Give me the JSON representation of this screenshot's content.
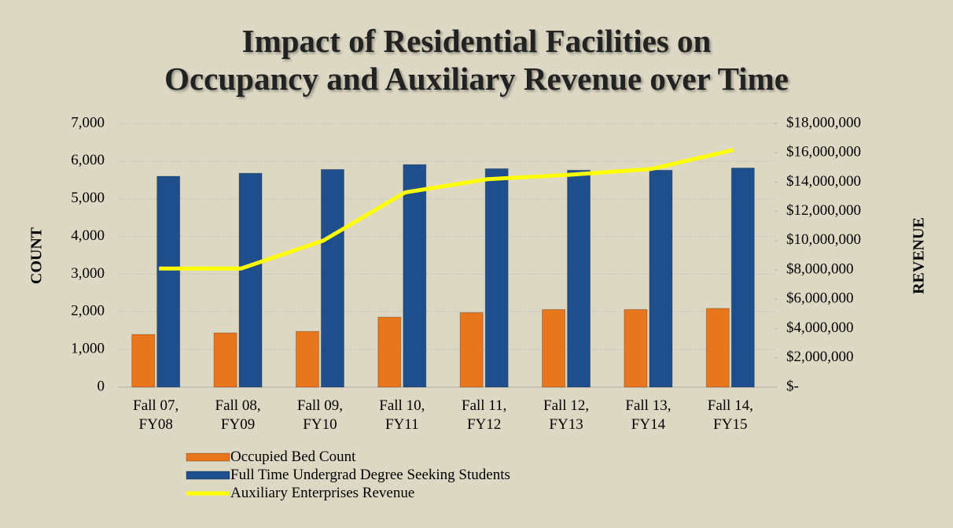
{
  "chart_data": {
    "type": "bar",
    "title": [
      "Impact of Residential Facilities on",
      "Occupancy and Auxiliary Revenue over Time"
    ],
    "y_label": "COUNT",
    "y2_label": "REVENUE",
    "categories": [
      "Fall 07, FY08",
      "Fall 08, FY09",
      "Fall 09, FY10",
      "Fall 10, FY11",
      "Fall 11, FY12",
      "Fall 12, FY13",
      "Fall 13, FY14",
      "Fall 14, FY15"
    ],
    "series": [
      {
        "name": "Occupied Bed Count",
        "type": "bar",
        "color": "#e8761c",
        "values": [
          1400,
          1440,
          1480,
          1860,
          1980,
          2060,
          2060,
          2090
        ]
      },
      {
        "name": "Full Time Undergrad Degree Seeking Students",
        "type": "bar",
        "color": "#1f4e8c",
        "values": [
          5600,
          5680,
          5780,
          5910,
          5800,
          5760,
          5760,
          5820
        ]
      },
      {
        "name": "Auxiliary Enterprises Revenue",
        "type": "line",
        "axis": "y2",
        "color": "#ffff00",
        "values": [
          8100000,
          8100000,
          10000000,
          13300000,
          14200000,
          14500000,
          14900000,
          16200000
        ]
      }
    ],
    "ylim": [
      0,
      7000
    ],
    "yticks": [
      0,
      {
        "value": 1000,
        "label": "1,000"
      },
      {
        "value": 2000,
        "label": "2,000"
      },
      {
        "value": 3000,
        "label": "3,000"
      },
      {
        "value": 4000,
        "label": "4,000"
      },
      {
        "value": 5000,
        "label": "5,000"
      },
      {
        "value": 6000,
        "label": "6,000"
      },
      {
        "value": 7000,
        "label": "7,000"
      }
    ],
    "y2lim": [
      0,
      18000000
    ],
    "y2ticks": [
      {
        "value": 0,
        "label": "$-"
      },
      {
        "value": 2000000,
        "label": "$2,000,000"
      },
      {
        "value": 4000000,
        "label": "$4,000,000"
      },
      {
        "value": 6000000,
        "label": "$6,000,000"
      },
      {
        "value": 8000000,
        "label": "$8,000,000"
      },
      {
        "value": 10000000,
        "label": "$10,000,000"
      },
      {
        "value": 12000000,
        "label": "$12,000,000"
      },
      {
        "value": 14000000,
        "label": "$14,000,000"
      },
      {
        "value": 16000000,
        "label": "$16,000,000"
      },
      {
        "value": 18000000,
        "label": "$18,000,000"
      }
    ],
    "grid": true,
    "legend": "bottom"
  }
}
